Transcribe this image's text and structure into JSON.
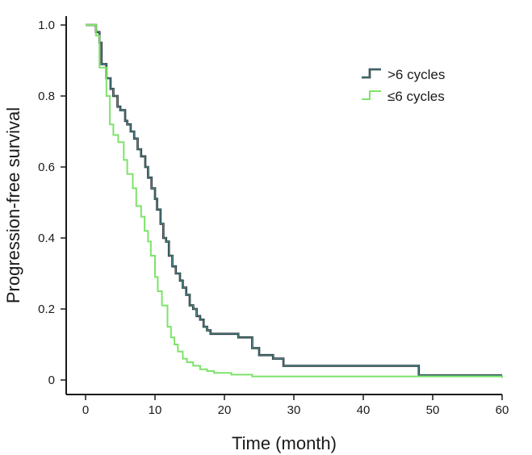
{
  "chart_data": {
    "type": "line",
    "xlabel": "Time (month)",
    "ylabel": "Progression-free survival",
    "xlim": [
      0,
      60
    ],
    "ylim": [
      0,
      1.0
    ],
    "x_ticks": [
      0,
      10,
      20,
      30,
      40,
      50,
      60
    ],
    "y_ticks": [
      0,
      0.2,
      0.4,
      0.6,
      0.8,
      1.0
    ],
    "x_tick_labels": [
      "0",
      "10",
      "20",
      "30",
      "40",
      "50",
      "60"
    ],
    "y_tick_labels": [
      "0",
      "0.2",
      "0.4",
      "0.6",
      "0.8",
      "1.0"
    ],
    "step": true,
    "grid": false,
    "legend_position": "top-right",
    "series": [
      {
        "name": ">6 cycles",
        "color": "#4f8f96",
        "line_color_secondary": "#1a1a1a",
        "x": [
          0,
          1.5,
          2,
          2.3,
          3,
          3.6,
          4,
          4.6,
          5,
          5.7,
          6,
          6.5,
          7,
          7.5,
          8,
          8.6,
          9,
          9.5,
          10,
          10.3,
          10.8,
          11.2,
          11.6,
          12,
          12.5,
          13,
          13.6,
          14,
          14.5,
          15,
          15.5,
          16,
          16.5,
          17,
          17.5,
          18,
          22,
          24,
          25,
          27,
          28.5,
          48,
          60
        ],
        "y": [
          1.0,
          0.98,
          0.95,
          0.89,
          0.85,
          0.82,
          0.8,
          0.77,
          0.76,
          0.73,
          0.72,
          0.7,
          0.68,
          0.65,
          0.63,
          0.6,
          0.57,
          0.54,
          0.51,
          0.48,
          0.44,
          0.4,
          0.39,
          0.35,
          0.32,
          0.3,
          0.28,
          0.26,
          0.24,
          0.21,
          0.2,
          0.18,
          0.17,
          0.15,
          0.14,
          0.13,
          0.12,
          0.09,
          0.07,
          0.06,
          0.04,
          0.013,
          0.013
        ]
      },
      {
        "name": "≤6 cycles",
        "color": "#7de36a",
        "x": [
          0,
          1.5,
          2,
          3,
          3.5,
          4,
          4.7,
          5.5,
          6,
          6.8,
          7.3,
          8,
          8.5,
          9,
          9.4,
          10,
          10.4,
          11,
          11.8,
          12.3,
          12.8,
          13.3,
          14,
          14.6,
          15.5,
          16.5,
          17.5,
          18.5,
          21,
          24,
          60
        ],
        "y": [
          1.0,
          0.97,
          0.88,
          0.8,
          0.72,
          0.69,
          0.67,
          0.62,
          0.58,
          0.54,
          0.49,
          0.46,
          0.42,
          0.39,
          0.35,
          0.29,
          0.25,
          0.21,
          0.15,
          0.12,
          0.1,
          0.08,
          0.06,
          0.05,
          0.04,
          0.03,
          0.025,
          0.02,
          0.015,
          0.01,
          0.006
        ]
      }
    ]
  }
}
